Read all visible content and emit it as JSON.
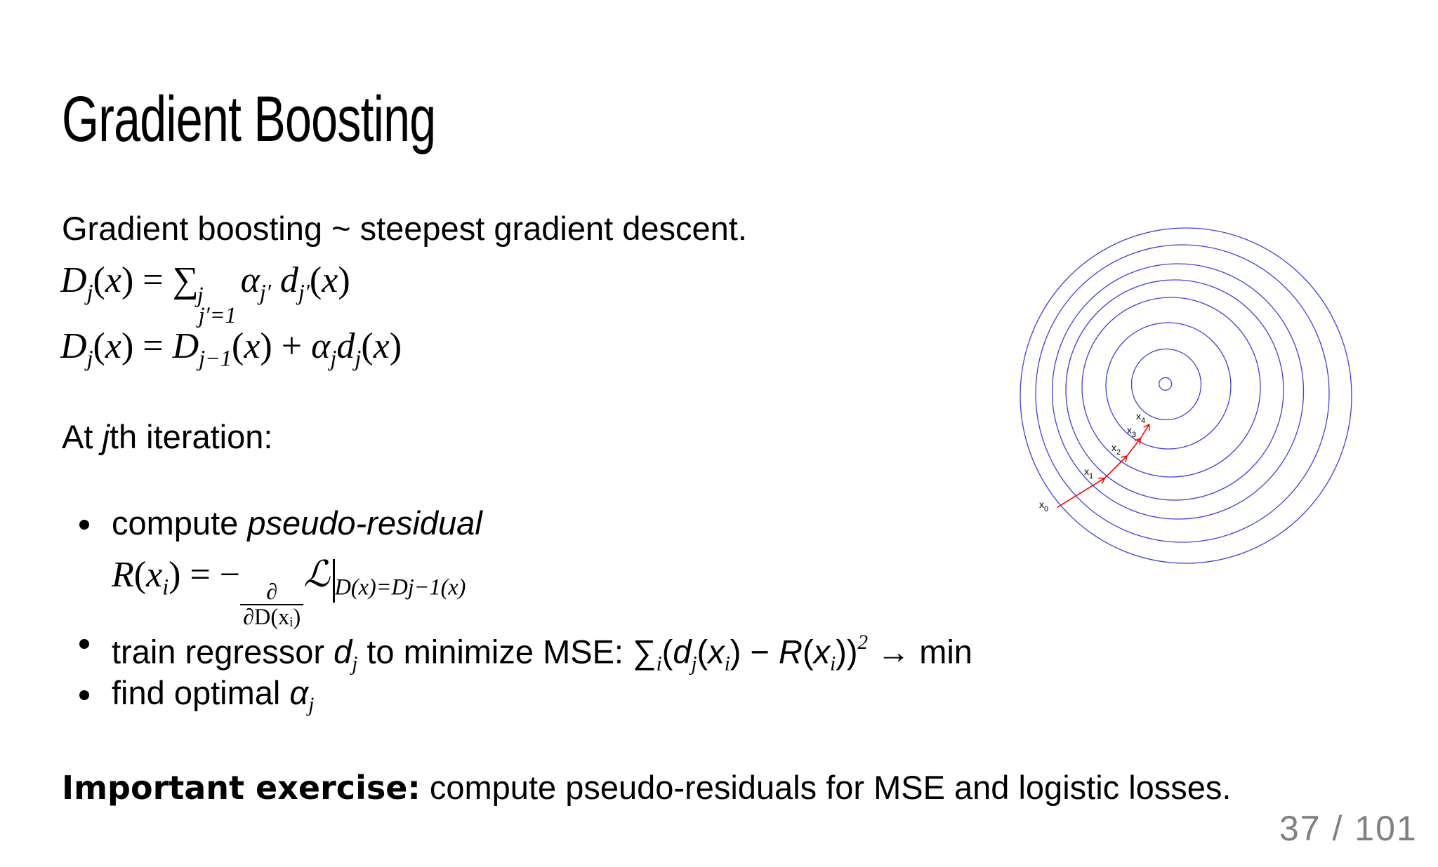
{
  "slide": {
    "title": "Gradient Boosting",
    "intro": "Gradient boosting ~ steepest gradient descent.",
    "formula_sum": [
      {
        "t": "D",
        "s": "i"
      },
      {
        "t": "j",
        "s": "sub"
      },
      {
        "t": "(",
        "s": "r"
      },
      {
        "t": "x",
        "s": "i"
      },
      {
        "t": ") = ",
        "s": "r"
      },
      {
        "t": "∑",
        "s": "r"
      },
      {
        "s": "subsup",
        "sup": "j",
        "sub": "j′=1"
      },
      {
        "t": "α",
        "s": "i"
      },
      {
        "t": "j′",
        "s": "sub"
      },
      {
        "t": " d",
        "s": "i"
      },
      {
        "t": "j′",
        "s": "sub"
      },
      {
        "t": "(",
        "s": "r"
      },
      {
        "t": "x",
        "s": "i"
      },
      {
        "t": ")",
        "s": "r"
      }
    ],
    "formula_recursive": [
      {
        "t": "D",
        "s": "i"
      },
      {
        "t": "j",
        "s": "sub"
      },
      {
        "t": "(",
        "s": "r"
      },
      {
        "t": "x",
        "s": "i"
      },
      {
        "t": ") = ",
        "s": "r"
      },
      {
        "t": "D",
        "s": "i"
      },
      {
        "t": "j−1",
        "s": "sub"
      },
      {
        "t": "(",
        "s": "r"
      },
      {
        "t": "x",
        "s": "i"
      },
      {
        "t": ") + ",
        "s": "r"
      },
      {
        "t": "α",
        "s": "i"
      },
      {
        "t": "j",
        "s": "sub"
      },
      {
        "t": "d",
        "s": "i"
      },
      {
        "t": "j",
        "s": "sub"
      },
      {
        "t": "(",
        "s": "r"
      },
      {
        "t": "x",
        "s": "i"
      },
      {
        "t": ")",
        "s": "r"
      }
    ],
    "iteration_heading": [
      {
        "t": "At ",
        "s": "sans"
      },
      {
        "t": "j",
        "s": "sansi"
      },
      {
        "t": "th iteration:",
        "s": "sans"
      }
    ],
    "bullets": [
      [
        {
          "t": "compute ",
          "s": "sans"
        },
        {
          "t": "pseudo-residual",
          "s": "sansi"
        }
      ],
      [
        {
          "t": "train regressor ",
          "s": "sans"
        },
        {
          "t": "d",
          "s": "i"
        },
        {
          "t": "j",
          "s": "sub"
        },
        {
          "t": "  to minimize MSE: ",
          "s": "sans"
        },
        {
          "t": "∑",
          "s": "r"
        },
        {
          "t": "i",
          "s": "sub"
        },
        {
          "t": "(",
          "s": "r"
        },
        {
          "t": "d",
          "s": "i"
        },
        {
          "t": "j",
          "s": "sub"
        },
        {
          "t": "(",
          "s": "r"
        },
        {
          "t": "x",
          "s": "i"
        },
        {
          "t": "i",
          "s": "sub"
        },
        {
          "t": ") − ",
          "s": "r"
        },
        {
          "t": "R",
          "s": "i"
        },
        {
          "t": "(",
          "s": "r"
        },
        {
          "t": "x",
          "s": "i"
        },
        {
          "t": "i",
          "s": "sub"
        },
        {
          "t": "))",
          "s": "r"
        },
        {
          "t": "2",
          "s": "sup"
        },
        {
          "t": " → min",
          "s": "r"
        }
      ],
      [
        {
          "t": "find optimal ",
          "s": "sans"
        },
        {
          "t": "α",
          "s": "i"
        },
        {
          "t": "j",
          "s": "sub"
        }
      ]
    ],
    "formula_residual": [
      {
        "t": "R",
        "s": "i"
      },
      {
        "t": "(",
        "s": "r"
      },
      {
        "t": "x",
        "s": "i"
      },
      {
        "t": "i",
        "s": "sub"
      },
      {
        "t": ") = −",
        "s": "r"
      },
      {
        "s": "frac",
        "num": "∂",
        "den": "∂D(xᵢ)"
      },
      {
        "t": "ℒ",
        "s": "i"
      },
      {
        "s": "evalbar"
      },
      {
        "t": "D(x)=D",
        "s": "sub"
      },
      {
        "t": "j−1",
        "s": "sub"
      },
      {
        "t": "(x)",
        "s": "sub"
      }
    ],
    "exercise_label": "Important exercise:",
    "exercise_text": " compute pseudo-residuals for MSE and logistic losses.",
    "page_number": "37 / 101"
  },
  "diagram": {
    "contour_color": "#4040e0",
    "path_color": "#ff0000",
    "labels": [
      {
        "base": "x",
        "sub": "0"
      },
      {
        "base": "x",
        "sub": "1"
      },
      {
        "base": "x",
        "sub": "2"
      },
      {
        "base": "x",
        "sub": "3"
      },
      {
        "base": "x",
        "sub": "4"
      }
    ]
  }
}
